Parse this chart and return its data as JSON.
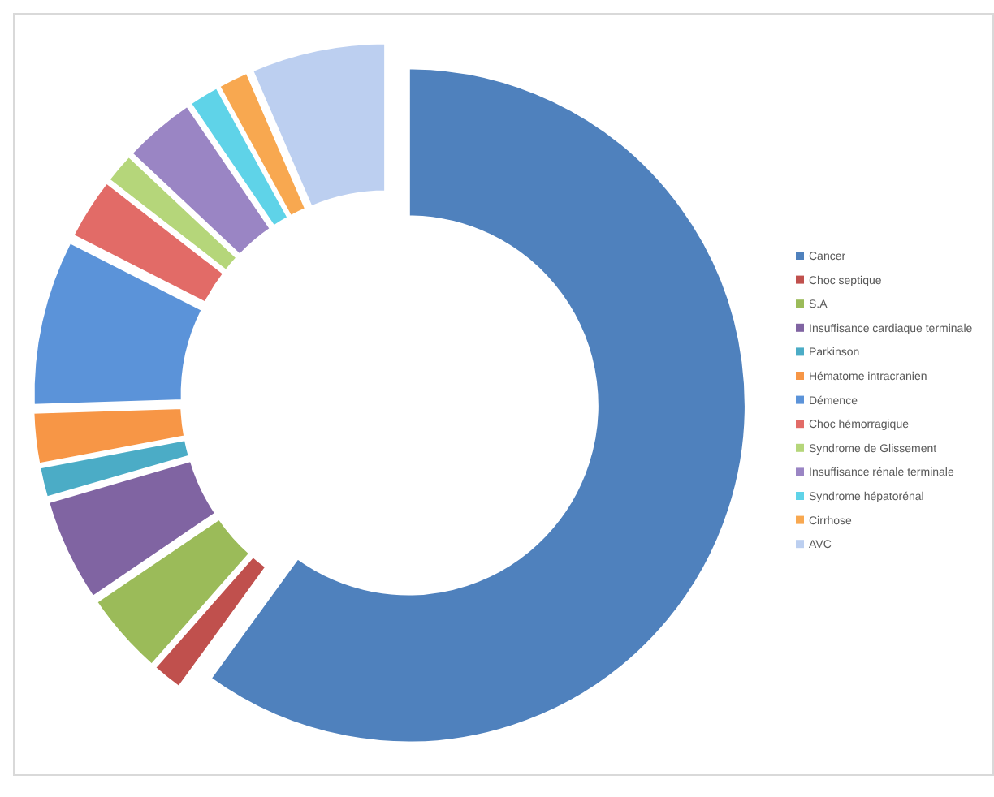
{
  "chart_data": {
    "type": "donut",
    "categories": [
      "Cancer",
      "Choc septique",
      "S.A",
      "Insuffisance cardiaque terminale",
      "Parkinson",
      "Hématome intracranien",
      "Démence",
      "Choc hémorragique",
      "Syndrome de Glissement",
      "Insuffisance rénale terminale",
      "Syndrome hépatorénal",
      "Cirrhose",
      "AVC"
    ],
    "values": [
      60,
      1.5,
      4,
      5,
      1.5,
      2.5,
      8,
      3,
      1.5,
      3.5,
      1.5,
      1.5,
      6.5
    ],
    "colors": [
      "#4f81bd",
      "#c0504d",
      "#9bbb59",
      "#8064a2",
      "#4bacc6",
      "#f79646",
      "#5b93d9",
      "#e26b67",
      "#b5d67a",
      "#9a85c4",
      "#5fd3e8",
      "#f8a850",
      "#bccff0"
    ],
    "legend": "right"
  }
}
